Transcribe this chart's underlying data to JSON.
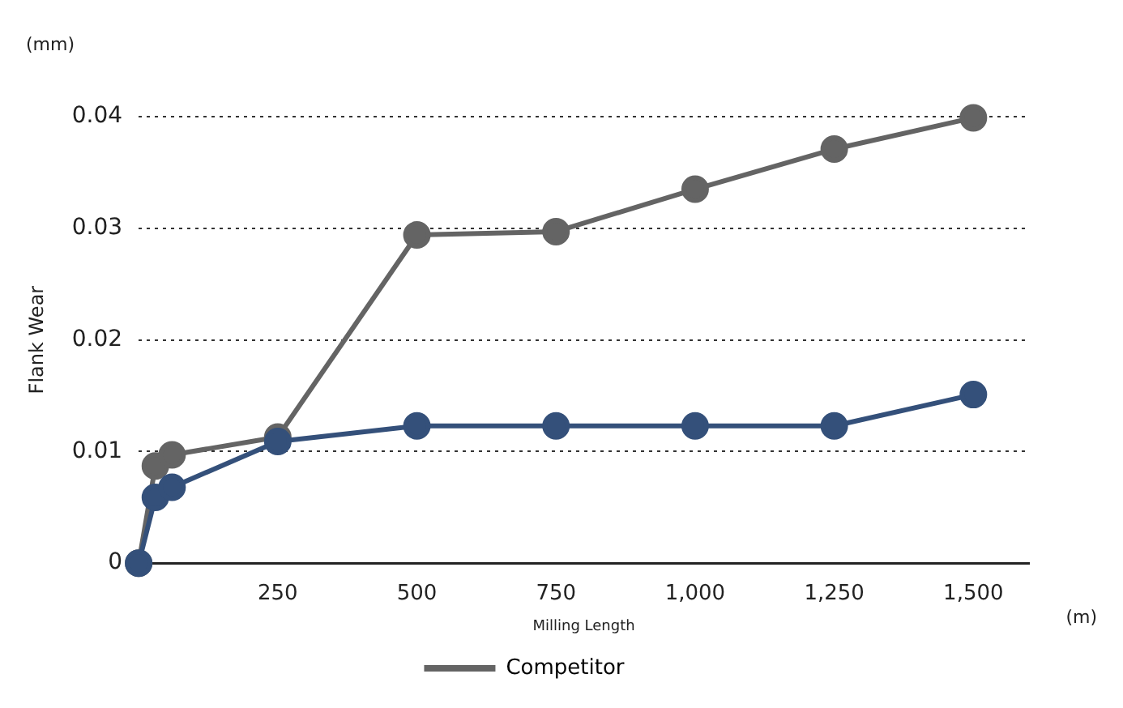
{
  "chart_data": {
    "type": "line",
    "xlabel": "Milling Length",
    "ylabel": "Flank Wear",
    "annotations": [
      "(mm)",
      "(m)"
    ],
    "xlim": [
      0,
      1600
    ],
    "xticks": [
      {
        "value": 250,
        "label": "250"
      },
      {
        "value": 500,
        "label": "500"
      },
      {
        "value": 750,
        "label": "750"
      },
      {
        "value": 1000,
        "label": "1,000"
      },
      {
        "value": 1250,
        "label": "1,250"
      },
      {
        "value": 1500,
        "label": "1,500"
      }
    ],
    "ylim": [
      0,
      0.04
    ],
    "yticks": [
      0,
      0.01,
      0.02,
      0.03,
      0.04
    ],
    "x": [
      0,
      30,
      60,
      250,
      500,
      750,
      1000,
      1250,
      1500
    ],
    "series": [
      {
        "color": "#34507a",
        "values": [
          0,
          0.0059,
          0.0068,
          0.0109,
          0.0123,
          0.0123,
          0.0123,
          0.0123,
          0.0151
        ]
      },
      {
        "name": "Competitor",
        "color": "#646464",
        "values": [
          0,
          0.0087,
          0.0097,
          0.0113,
          0.0294,
          0.0297,
          0.0335,
          0.0371,
          0.0399
        ]
      }
    ],
    "grid": "y",
    "legend": "bottom",
    "marker": "circle",
    "line_style": "solid"
  }
}
